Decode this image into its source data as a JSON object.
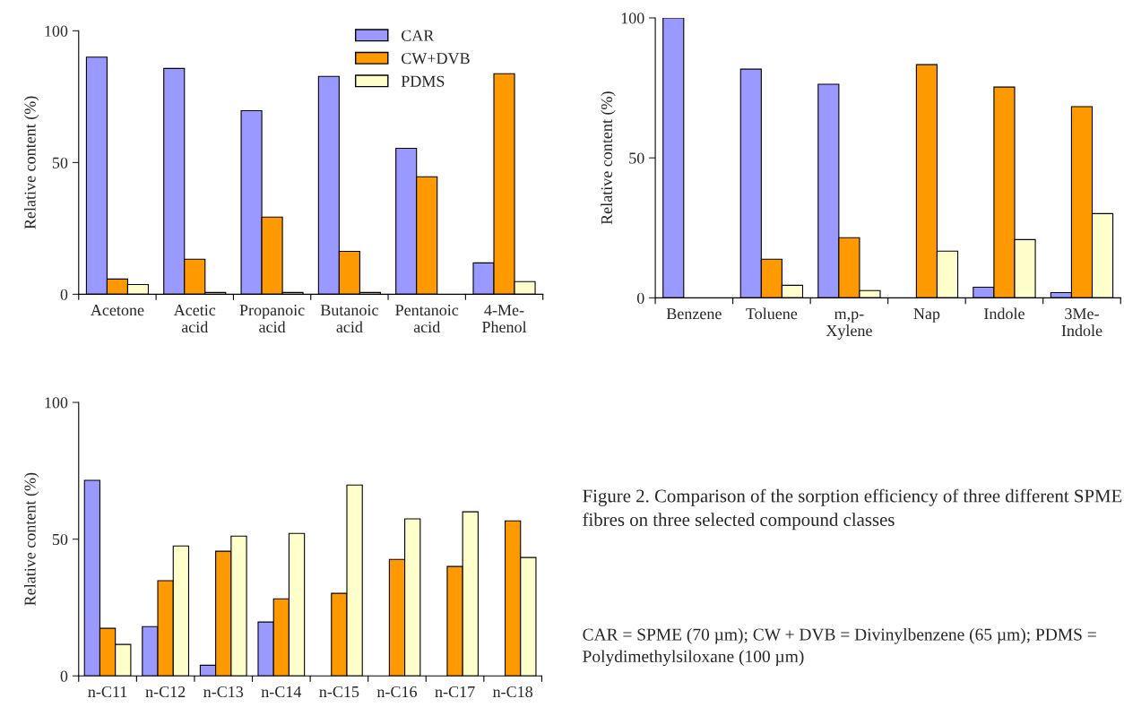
{
  "chart_data": [
    {
      "type": "bar",
      "ylabel": "Relative content (%)",
      "categories": [
        "Acetone",
        "Acetic\nacid",
        "Propanoic\nacid",
        "Butanoic\nacid",
        "Pentanoic\nacid",
        "4-Me-\nPhenol"
      ],
      "ylim": [
        0,
        100
      ],
      "yticks": [
        0,
        50,
        100
      ],
      "grid": false,
      "legend": "top",
      "series": [
        {
          "name": "CAR",
          "color": "#9999ff",
          "values": [
            90,
            85.7,
            69.7,
            82.7,
            55.4,
            11.9
          ]
        },
        {
          "name": "CW+DVB",
          "color": "#ff9900",
          "values": [
            5.8,
            13.3,
            29.3,
            16.3,
            44.6,
            83.7
          ]
        },
        {
          "name": "PDMS",
          "color": "#ffffcc",
          "values": [
            3.7,
            0.7,
            0.7,
            0.7,
            null,
            4.8
          ]
        }
      ]
    },
    {
      "type": "bar",
      "ylabel": "Relative content (%)",
      "categories": [
        "Benzene",
        "Toluene",
        "m,p-\nXylene",
        "Nap",
        "Indole",
        "3Me-\nIndole"
      ],
      "ylim": [
        0,
        100
      ],
      "yticks": [
        0,
        50,
        100
      ],
      "grid": false,
      "series": [
        {
          "color": "#9999ff",
          "values": [
            100,
            81.7,
            76.3,
            null,
            3.8,
            1.9
          ]
        },
        {
          "color": "#ff9900",
          "values": [
            null,
            13.8,
            21.5,
            83.3,
            75.3,
            68.3
          ]
        },
        {
          "color": "#ffffcc",
          "values": [
            null,
            4.5,
            2.6,
            16.7,
            20.8,
            30.1
          ]
        }
      ]
    },
    {
      "type": "bar",
      "ylabel": "Relative content (%)",
      "categories": [
        "n-C11",
        "n-C12",
        "n-C13",
        "n-C14",
        "n-C15",
        "n-C16",
        "n-C17",
        "n-C18"
      ],
      "ylim": [
        0,
        100
      ],
      "yticks": [
        0,
        50,
        100
      ],
      "grid": false,
      "annotations": [
        "Figure 2. Comparison of the sorption efficiency of three different SPME fibres on three selected compound classes",
        "CAR = SPME (70 µm); CW + DVB = Divinylbenzene (65 µm); PDMS = Polydimethylsiloxane (100 µm)"
      ],
      "series": [
        {
          "color": "#9999ff",
          "values": [
            71.5,
            18,
            3.9,
            19.7,
            null,
            null,
            null,
            null
          ]
        },
        {
          "color": "#ff9900",
          "values": [
            17.4,
            34.8,
            45.6,
            28.2,
            30.2,
            42.6,
            40,
            56.7
          ]
        },
        {
          "color": "#ffffcc",
          "values": [
            11.5,
            47.5,
            51.1,
            52.1,
            69.8,
            57.4,
            60,
            43.3
          ]
        }
      ]
    }
  ]
}
